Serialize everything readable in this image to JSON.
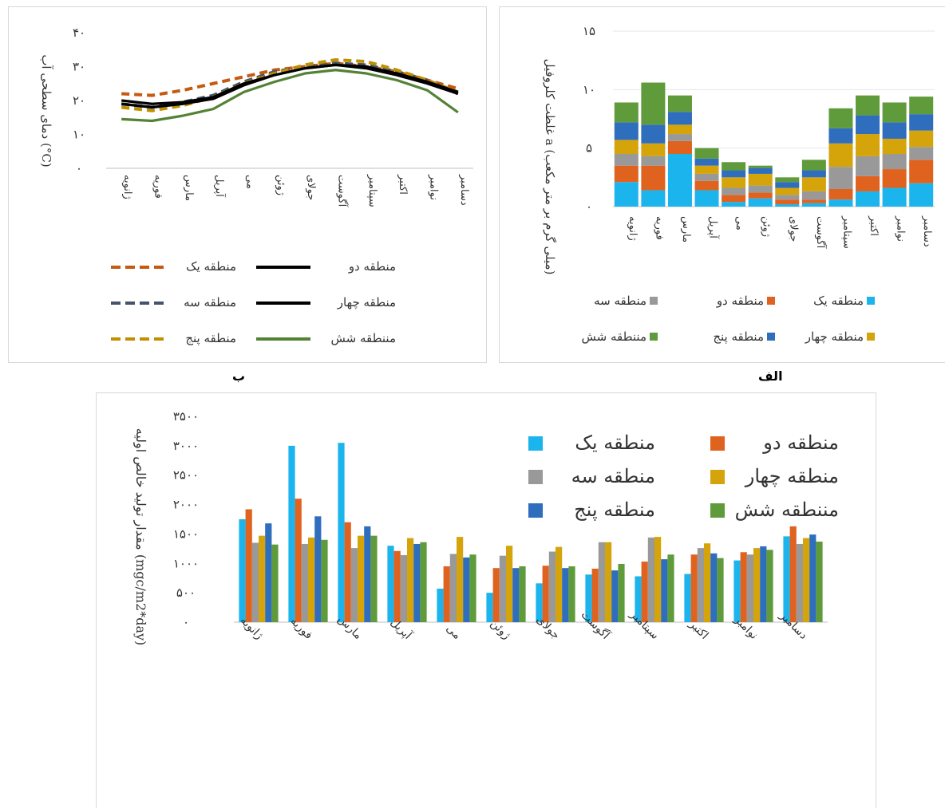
{
  "months": [
    "ژانویه",
    "فوریه",
    "مارس",
    "آپریل",
    "می",
    "ژوئن",
    "جولای",
    "آگوست",
    "سپتامبر",
    "اکتبر",
    "نوامبر",
    "دسامبر"
  ],
  "colors": {
    "zone1": "#1cb4ec",
    "zone2": "#e0621f",
    "zone3": "#999999",
    "zone4": "#d4a40a",
    "zone5": "#2f6dbd",
    "zone6": "#5f9b3b",
    "zone2_line": "#000000",
    "zone4_line": "#000000",
    "zone3_line": "#44546a",
    "zone1_line": "#c55a11",
    "zone5_line": "#bf9000",
    "zone6_line": "#548235"
  },
  "captions": {
    "left": "ب",
    "right": "الف"
  },
  "chart_data": [
    {
      "id": "alef",
      "type": "bar",
      "stacked": true,
      "ylabel": "غلظت کلروفیل a (میلی گرم بر متر مکعب)",
      "ylim": [
        0,
        15
      ],
      "yticks": [
        "۰",
        "۵",
        "۱۰",
        "۱۵"
      ],
      "grid": true,
      "legend": "bottom",
      "series": [
        {
          "name": "منطقه یک",
          "values": [
            2.1,
            1.4,
            4.5,
            1.4,
            0.4,
            0.7,
            0.2,
            0.3,
            0.6,
            1.3,
            1.6,
            2.0
          ]
        },
        {
          "name": "منطقه دو",
          "values": [
            1.4,
            2.1,
            1.1,
            0.8,
            0.6,
            0.5,
            0.4,
            0.3,
            0.9,
            1.3,
            1.6,
            2.0
          ]
        },
        {
          "name": "منطقه سه",
          "values": [
            1.0,
            0.8,
            0.6,
            0.6,
            0.6,
            0.6,
            0.4,
            0.7,
            1.9,
            1.7,
            1.3,
            1.1
          ]
        },
        {
          "name": "منطقه چهار",
          "values": [
            1.2,
            1.1,
            0.8,
            0.7,
            0.9,
            1.0,
            0.6,
            1.2,
            2.0,
            1.9,
            1.3,
            1.4
          ]
        },
        {
          "name": "منطقه پنج",
          "values": [
            1.5,
            1.6,
            1.1,
            0.6,
            0.6,
            0.5,
            0.5,
            0.6,
            1.3,
            1.6,
            1.4,
            1.4
          ]
        },
        {
          "name": "مننطقه شش",
          "values": [
            1.7,
            3.6,
            1.4,
            0.9,
            0.7,
            0.2,
            0.4,
            0.9,
            1.7,
            1.7,
            1.7,
            1.5
          ]
        }
      ]
    },
    {
      "id": "be",
      "type": "line",
      "ylabel": "دمای سطحی آب (°C)",
      "ylim": [
        0,
        40
      ],
      "yticks": [
        "۰",
        "۱۰",
        "۲۰",
        "۳۰",
        "۴۰"
      ],
      "legend": "bottom",
      "series": [
        {
          "name": "منطقه یک",
          "dashed": true,
          "values": [
            22.0,
            21.5,
            23.0,
            25.0,
            27.0,
            29.0,
            30.0,
            31.0,
            30.0,
            28.5,
            26.0,
            23.5
          ]
        },
        {
          "name": "منطقه دو",
          "dashed": false,
          "values": [
            20.0,
            19.0,
            19.5,
            21.0,
            25.0,
            27.5,
            29.5,
            30.5,
            30.0,
            28.0,
            25.5,
            22.5
          ]
        },
        {
          "name": "منطقه سه",
          "dashed": true,
          "values": [
            19.0,
            18.0,
            19.5,
            21.5,
            25.5,
            28.5,
            30.0,
            31.0,
            30.5,
            28.5,
            26.0,
            22.0
          ]
        },
        {
          "name": "منطقه چهار",
          "dashed": false,
          "values": [
            19.0,
            18.0,
            19.0,
            20.5,
            24.5,
            27.5,
            29.5,
            30.5,
            29.5,
            27.5,
            25.0,
            22.0
          ]
        },
        {
          "name": "منطقه پنج",
          "dashed": true,
          "values": [
            18.0,
            17.0,
            18.5,
            21.0,
            25.0,
            28.0,
            30.5,
            32.0,
            31.5,
            29.0,
            26.0,
            22.5
          ]
        },
        {
          "name": "مننطقه شش",
          "dashed": false,
          "values": [
            14.5,
            14.0,
            15.5,
            17.5,
            22.5,
            25.5,
            28.0,
            29.0,
            28.0,
            26.0,
            23.0,
            16.5
          ]
        }
      ]
    },
    {
      "id": "bottom",
      "type": "bar",
      "ylabel": "مقدار تولید خالص اولیه (mgc/m2*day)",
      "ylim": [
        0,
        3500
      ],
      "yticks": [
        "۰",
        "۵۰۰",
        "۱۰۰۰",
        "۱۵۰۰",
        "۲۰۰۰",
        "۲۵۰۰",
        "۳۰۰۰",
        "۳۵۰۰"
      ],
      "legend": "top-right",
      "series": [
        {
          "name": "منطقه یک",
          "values": [
            1750,
            3000,
            3050,
            1300,
            570,
            500,
            660,
            810,
            780,
            820,
            1050,
            1460
          ]
        },
        {
          "name": "منطقه دو",
          "values": [
            1920,
            2100,
            1700,
            1210,
            950,
            920,
            960,
            910,
            1030,
            1150,
            1190,
            1630
          ]
        },
        {
          "name": "منطقه سه",
          "values": [
            1350,
            1330,
            1260,
            1140,
            1160,
            1130,
            1200,
            1360,
            1440,
            1260,
            1150,
            1330
          ]
        },
        {
          "name": "منطقه چهار",
          "values": [
            1470,
            1440,
            1470,
            1430,
            1450,
            1300,
            1280,
            1360,
            1450,
            1340,
            1260,
            1430
          ]
        },
        {
          "name": "منطقه پنج",
          "values": [
            1680,
            1800,
            1630,
            1330,
            1100,
            920,
            920,
            880,
            1070,
            1170,
            1290,
            1490
          ]
        },
        {
          "name": "مننطقه شش",
          "values": [
            1320,
            1400,
            1470,
            1360,
            1150,
            950,
            950,
            990,
            1150,
            1090,
            1230,
            1370
          ]
        }
      ]
    }
  ]
}
